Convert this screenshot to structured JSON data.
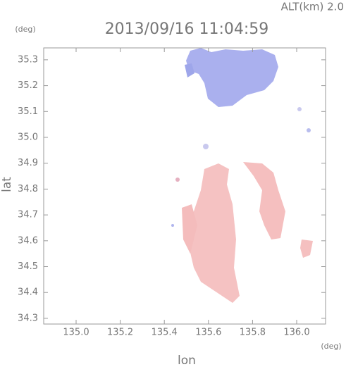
{
  "chart_data": {
    "type": "map",
    "title": "2013/09/16 11:04:59",
    "annotation": "ALT(km) 2.0",
    "x_unit": "(deg)",
    "y_unit": "(deg)",
    "xlabel": "lon",
    "ylabel": "lat",
    "xlim": [
      134.853,
      136.131
    ],
    "ylim": [
      34.278,
      35.346
    ],
    "xticks": [
      {
        "value": 135.0,
        "label": "135.0"
      },
      135.2,
      135.4,
      135.6,
      135.8,
      {
        "value": 136.0,
        "label": "136.0"
      }
    ],
    "yticks": [
      34.3,
      34.4,
      34.5,
      34.6,
      34.7,
      34.8,
      34.9,
      {
        "value": 35.0,
        "label": "35.0"
      },
      35.1,
      35.2,
      35.3
    ]
  }
}
